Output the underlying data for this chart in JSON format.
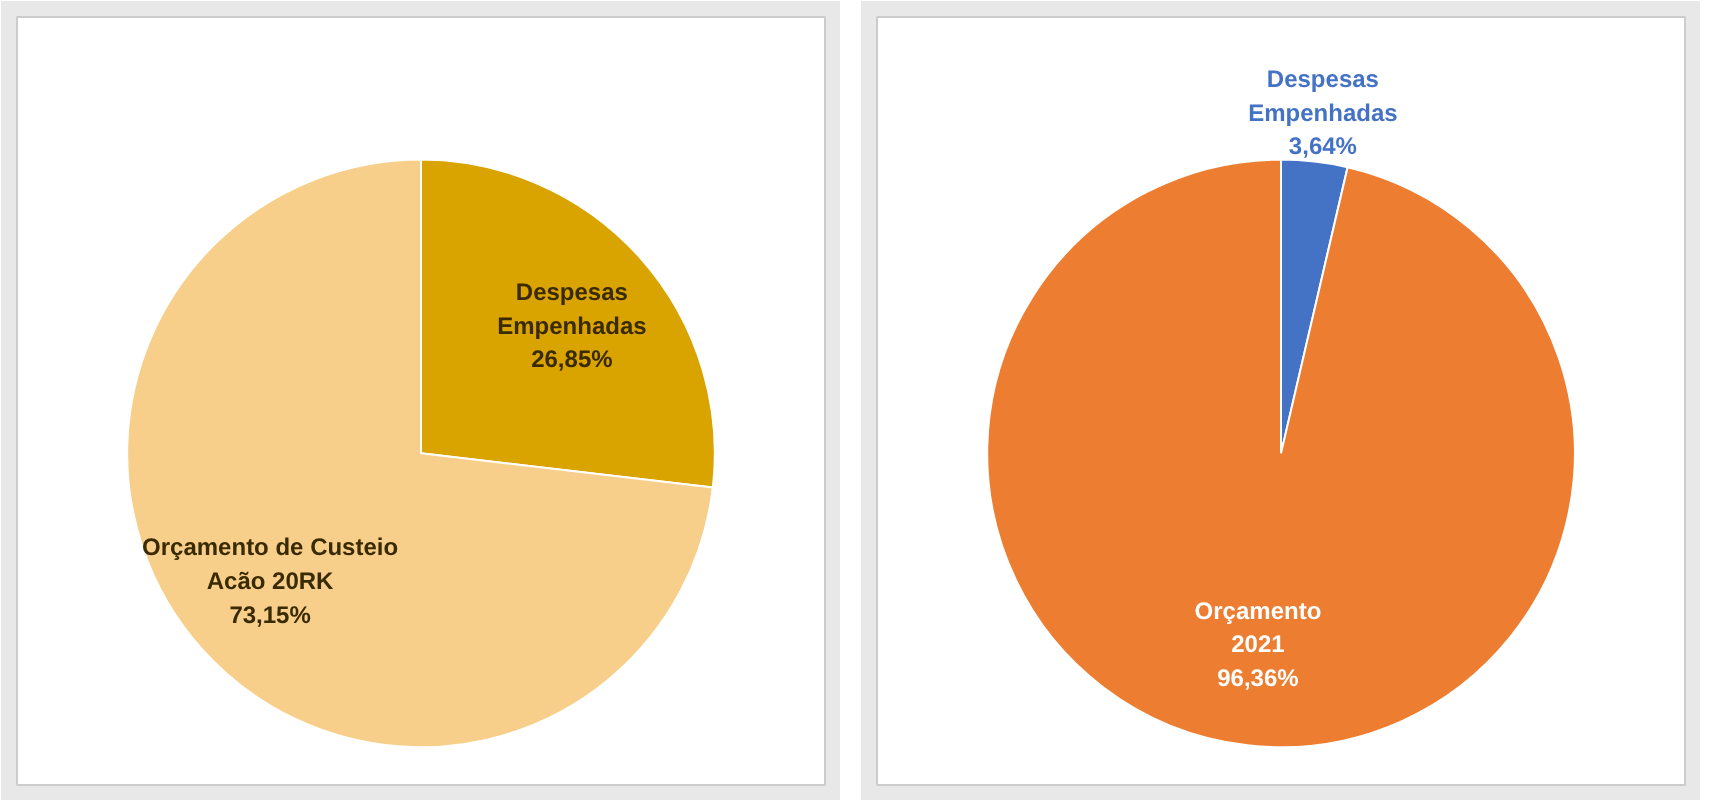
{
  "chart_data": [
    {
      "type": "pie",
      "categories": [
        "Despesas\nEmpenhadas",
        "Orçamento de Custeio\nAcão 20RK"
      ],
      "values": [
        26.85,
        73.15
      ],
      "colors": [
        "#d9a300",
        "#f8cf8a"
      ],
      "value_labels": [
        "26,85%",
        "73,15%"
      ]
    },
    {
      "type": "pie",
      "categories": [
        "Despesas\nEmpenhadas",
        "Orçamento\n2021"
      ],
      "values": [
        3.64,
        96.36
      ],
      "colors": [
        "#4472c4",
        "#ed7d31"
      ],
      "value_labels": [
        "3,64%",
        "96,36%"
      ]
    }
  ]
}
